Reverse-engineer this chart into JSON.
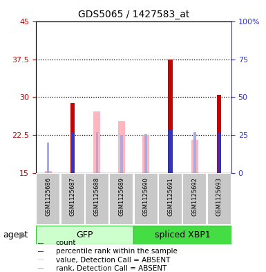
{
  "title": "GDS5065 / 1427583_at",
  "samples": [
    "GSM1125686",
    "GSM1125687",
    "GSM1125688",
    "GSM1125689",
    "GSM1125690",
    "GSM1125691",
    "GSM1125692",
    "GSM1125693"
  ],
  "groups": [
    "GFP",
    "GFP",
    "GFP",
    "GFP",
    "spliced XBP1",
    "spliced XBP1",
    "spliced XBP1",
    "spliced XBP1"
  ],
  "gfp_color_light": "#CCFFCC",
  "gfp_color_dark": "#44DD44",
  "xbp_color_dark": "#44DD44",
  "ylim_left": [
    15,
    45
  ],
  "ylim_right": [
    0,
    100
  ],
  "yticks_left": [
    15,
    22.5,
    30,
    37.5,
    45
  ],
  "yticks_right": [
    0,
    25,
    50,
    75,
    100
  ],
  "ytick_labels_left": [
    "15",
    "22.5",
    "30",
    "37.5",
    "45"
  ],
  "ytick_labels_right": [
    "0",
    "25",
    "50",
    "75",
    "100%"
  ],
  "count_values": [
    null,
    28.8,
    null,
    null,
    null,
    37.5,
    null,
    30.5
  ],
  "rank_values": [
    null,
    23.0,
    null,
    null,
    null,
    23.5,
    null,
    23.0
  ],
  "absent_value_values": [
    15.3,
    null,
    27.2,
    25.2,
    22.5,
    null,
    21.5,
    null
  ],
  "absent_rank_values": [
    21.0,
    null,
    23.0,
    22.5,
    22.7,
    null,
    23.0,
    null
  ],
  "count_color": "#CC0000",
  "rank_color": "#3333CC",
  "absent_value_color": "#FFB6C1",
  "absent_rank_color": "#AAAADD",
  "count_bar_width": 0.18,
  "rank_bar_width": 0.12,
  "absent_value_bar_width": 0.28,
  "absent_rank_bar_width": 0.1,
  "legend_items": [
    "count",
    "percentile rank within the sample",
    "value, Detection Call = ABSENT",
    "rank, Detection Call = ABSENT"
  ]
}
